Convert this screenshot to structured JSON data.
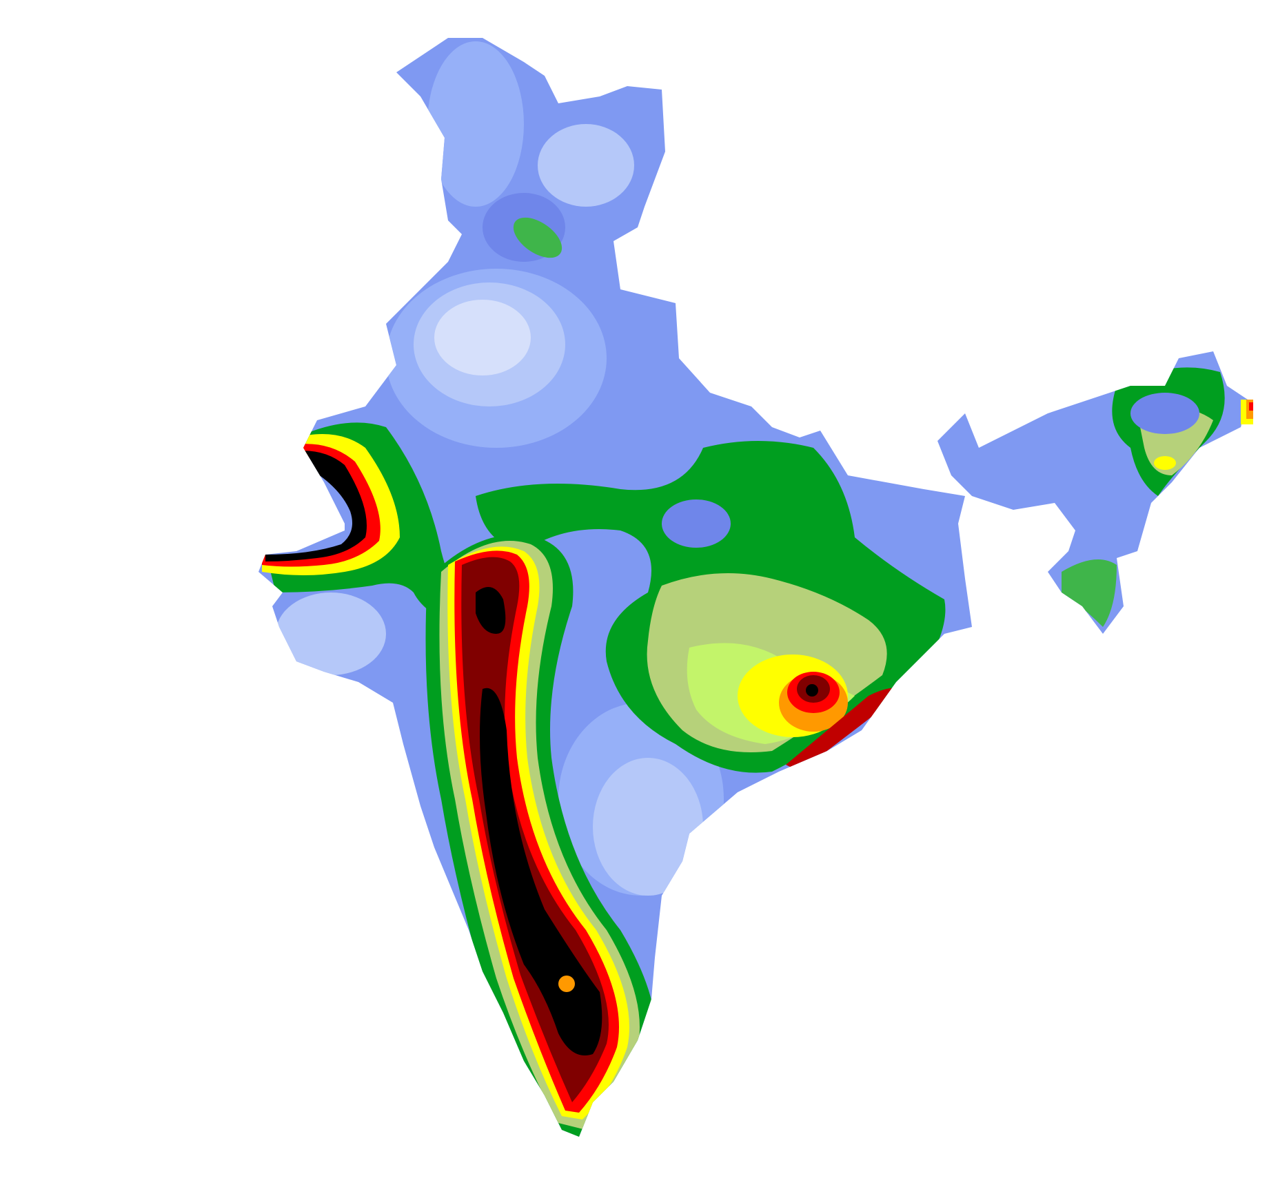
{
  "map": {
    "type": "choropleth-contour",
    "region": "India",
    "background_color": "#ffffff",
    "color_scale_low_to_high": [
      "#d6e0fb",
      "#b5c8f9",
      "#96b0f8",
      "#7f99f2",
      "#6f86ea",
      "#3fb54a",
      "#009e1f",
      "#b6d17a",
      "#c3f46a",
      "#ffff00",
      "#ff9900",
      "#ff0000",
      "#c00000",
      "#800000",
      "#000000"
    ],
    "features": [
      "west-coast-high-band",
      "gujarat-high-band",
      "eastern-coast-high-spot",
      "central-green-zone",
      "northeast-region",
      "kashmir-green-spot"
    ]
  }
}
